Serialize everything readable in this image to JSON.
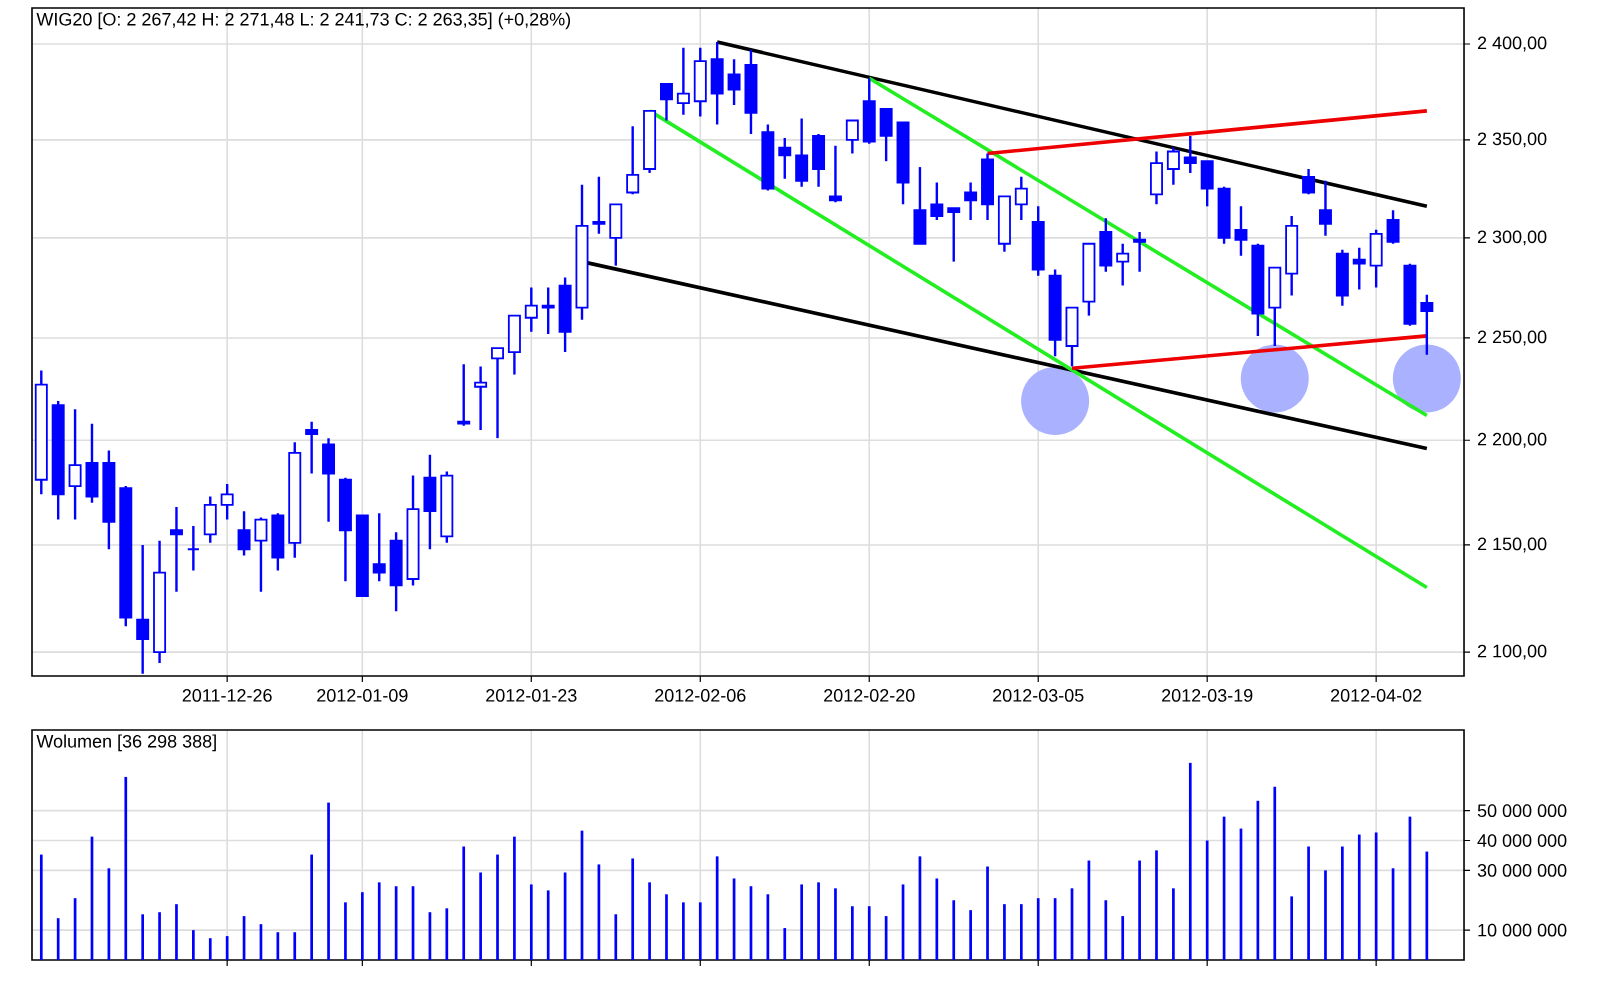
{
  "chart_data": [
    {
      "type": "candlestick",
      "title": "WIG20 [O: 2 267,42  H: 2 271,48  L: 2 241,73  C: 2 263,35] (+0,28%)",
      "color": "#0000ff",
      "log": true,
      "grid": true,
      "categories": [
        null,
        null,
        null,
        null,
        null,
        null,
        null,
        null,
        null,
        null,
        null,
        "2011-12-26",
        null,
        null,
        null,
        null,
        null,
        null,
        null,
        "2012-01-09",
        null,
        null,
        null,
        null,
        null,
        null,
        null,
        null,
        null,
        "2012-01-23",
        null,
        null,
        null,
        null,
        null,
        null,
        null,
        null,
        null,
        "2012-02-06",
        null,
        null,
        null,
        null,
        null,
        null,
        null,
        null,
        null,
        "2012-02-20",
        null,
        null,
        null,
        null,
        null,
        null,
        null,
        null,
        null,
        "2012-03-05",
        null,
        null,
        null,
        null,
        null,
        null,
        null,
        null,
        null,
        "2012-03-19",
        null,
        null,
        null,
        null,
        null,
        null,
        null,
        null,
        null,
        "2012-04-02",
        null,
        null,
        null
      ],
      "ohlc": [
        [
          2181,
          2234,
          2174,
          2227
        ],
        [
          2217,
          2219,
          2162,
          2174
        ],
        [
          2178,
          2215,
          2162,
          2188
        ],
        [
          2189,
          2208,
          2170,
          2173
        ],
        [
          2189,
          2195,
          2148,
          2161
        ],
        [
          2177,
          2178,
          2112,
          2116
        ],
        [
          2115,
          2150,
          2090,
          2106
        ],
        [
          2100,
          2152,
          2095,
          2137
        ],
        [
          2157,
          2168,
          2128,
          2155
        ],
        [
          2148,
          2159,
          2138,
          2148
        ],
        [
          2155,
          2173,
          2151,
          2169
        ],
        [
          2169,
          2179,
          2162,
          2174
        ],
        [
          2157,
          2166,
          2145,
          2148
        ],
        [
          2152,
          2163,
          2128,
          2162
        ],
        [
          2164,
          2165,
          2138,
          2144
        ],
        [
          2151,
          2199,
          2144,
          2194
        ],
        [
          2205,
          2209,
          2184,
          2203
        ],
        [
          2198,
          2201,
          2161,
          2184
        ],
        [
          2181,
          2182,
          2133,
          2157
        ],
        [
          2164,
          2164,
          2126,
          2126
        ],
        [
          2141,
          2165,
          2133,
          2137
        ],
        [
          2152,
          2156,
          2119,
          2131
        ],
        [
          2134,
          2183,
          2131,
          2167
        ],
        [
          2182,
          2193,
          2148,
          2166
        ],
        [
          2154,
          2185,
          2151,
          2183
        ],
        [
          2209,
          2237,
          2207,
          2208
        ],
        [
          2226,
          2236,
          2205,
          2228
        ],
        [
          2240,
          2245,
          2201,
          2245
        ],
        [
          2243,
          2261,
          2232,
          2261
        ],
        [
          2260,
          2275,
          2253,
          2266
        ],
        [
          2266,
          2275,
          2252,
          2265
        ],
        [
          2276,
          2280,
          2243,
          2253
        ],
        [
          2265,
          2327,
          2259,
          2306
        ],
        [
          2308,
          2331,
          2302,
          2307
        ],
        [
          2300,
          2317,
          2286,
          2317
        ],
        [
          2323,
          2357,
          2322,
          2332
        ],
        [
          2335,
          2365,
          2333,
          2365
        ],
        [
          2379,
          2379,
          2360,
          2371
        ],
        [
          2369,
          2398,
          2363,
          2374
        ],
        [
          2370,
          2398,
          2362,
          2391
        ],
        [
          2392,
          2401,
          2358,
          2374
        ],
        [
          2384,
          2392,
          2368,
          2376
        ],
        [
          2389,
          2397,
          2353,
          2364
        ],
        [
          2354,
          2358,
          2324,
          2325
        ],
        [
          2346,
          2351,
          2330,
          2342
        ],
        [
          2342,
          2361,
          2326,
          2329
        ],
        [
          2352,
          2353,
          2326,
          2335
        ],
        [
          2321,
          2347,
          2318,
          2319
        ],
        [
          2350,
          2360,
          2343,
          2360
        ],
        [
          2370,
          2382,
          2348,
          2349
        ],
        [
          2366,
          2366,
          2339,
          2352
        ],
        [
          2359,
          2359,
          2317,
          2328
        ],
        [
          2314,
          2336,
          2297,
          2297
        ],
        [
          2317,
          2328,
          2309,
          2311
        ],
        [
          2315,
          2315,
          2288,
          2313
        ],
        [
          2323,
          2328,
          2309,
          2319
        ],
        [
          2340,
          2343,
          2309,
          2317
        ],
        [
          2297,
          2321,
          2293,
          2321
        ],
        [
          2317,
          2331,
          2309,
          2325
        ],
        [
          2308,
          2316,
          2281,
          2284
        ],
        [
          2281,
          2284,
          2241,
          2249
        ],
        [
          2246,
          2265,
          2236,
          2265
        ],
        [
          2268,
          2297,
          2261,
          2297
        ],
        [
          2303,
          2310,
          2283,
          2286
        ],
        [
          2288,
          2297,
          2276,
          2292
        ],
        [
          2299,
          2303,
          2283,
          2298
        ],
        [
          2322,
          2344,
          2317,
          2338
        ],
        [
          2335,
          2346,
          2327,
          2344
        ],
        [
          2341,
          2352,
          2333,
          2338
        ],
        [
          2339,
          2339,
          2316,
          2325
        ],
        [
          2325,
          2326,
          2297,
          2300
        ],
        [
          2304,
          2316,
          2291,
          2299
        ],
        [
          2296,
          2297,
          2251,
          2262
        ],
        [
          2265,
          2285,
          2246,
          2285
        ],
        [
          2282,
          2311,
          2271,
          2306
        ],
        [
          2331,
          2335,
          2322,
          2323
        ],
        [
          2314,
          2329,
          2301,
          2307
        ],
        [
          2292,
          2294,
          2266,
          2271
        ],
        [
          2289,
          2295,
          2274,
          2287
        ],
        [
          2286,
          2304,
          2275,
          2302
        ],
        [
          2309,
          2314,
          2297,
          2298
        ],
        [
          2286,
          2287,
          2256,
          2257
        ],
        [
          2267.42,
          2271.48,
          2241.73,
          2263.35
        ]
      ],
      "series": [
        {
          "type": "scatter",
          "marker": "circle",
          "color": "#aab2ff",
          "values": [
            null,
            null,
            null,
            null,
            null,
            null,
            null,
            null,
            null,
            null,
            null,
            null,
            null,
            null,
            null,
            null,
            null,
            null,
            null,
            null,
            null,
            null,
            null,
            null,
            null,
            null,
            null,
            null,
            null,
            null,
            null,
            null,
            null,
            null,
            null,
            null,
            null,
            null,
            null,
            null,
            null,
            null,
            null,
            null,
            null,
            null,
            null,
            null,
            null,
            null,
            null,
            null,
            null,
            null,
            null,
            null,
            null,
            null,
            null,
            null,
            2219,
            null,
            null,
            null,
            null,
            null,
            null,
            null,
            null,
            null,
            null,
            null,
            null,
            2230,
            null,
            null,
            null,
            null,
            null,
            null,
            null,
            null,
            2230
          ]
        },
        {
          "type": "line",
          "color": "#000000",
          "values": [
            null,
            null,
            null,
            null,
            null,
            null,
            null,
            null,
            null,
            null,
            null,
            null,
            null,
            null,
            null,
            null,
            null,
            null,
            null,
            null,
            null,
            null,
            null,
            null,
            null,
            null,
            null,
            null,
            null,
            null,
            null,
            null,
            null,
            null,
            null,
            null,
            null,
            null,
            null,
            null,
            2401,
            null,
            null,
            null,
            null,
            null,
            null,
            null,
            null,
            null,
            null,
            null,
            null,
            null,
            null,
            null,
            null,
            null,
            null,
            null,
            null,
            null,
            null,
            null,
            null,
            null,
            null,
            null,
            null,
            null,
            null,
            null,
            null,
            null,
            null,
            null,
            null,
            null,
            null,
            null,
            null,
            null,
            2316
          ]
        },
        {
          "type": "line",
          "color": "#000000",
          "values": [
            null,
            null,
            null,
            null,
            null,
            null,
            null,
            null,
            null,
            null,
            null,
            null,
            null,
            null,
            null,
            null,
            null,
            null,
            null,
            null,
            null,
            null,
            null,
            null,
            null,
            null,
            null,
            null,
            null,
            null,
            null,
            null,
            2288,
            null,
            null,
            null,
            null,
            null,
            null,
            null,
            null,
            null,
            null,
            null,
            null,
            null,
            null,
            null,
            null,
            null,
            null,
            null,
            null,
            null,
            null,
            null,
            null,
            null,
            null,
            null,
            null,
            null,
            null,
            null,
            null,
            null,
            null,
            null,
            null,
            null,
            null,
            null,
            null,
            null,
            null,
            null,
            null,
            null,
            null,
            null,
            null,
            null,
            2196
          ]
        },
        {
          "type": "line",
          "color": "#22ee22",
          "values": [
            null,
            null,
            null,
            null,
            null,
            null,
            null,
            null,
            null,
            null,
            null,
            null,
            null,
            null,
            null,
            null,
            null,
            null,
            null,
            null,
            null,
            null,
            null,
            null,
            null,
            null,
            null,
            null,
            null,
            null,
            null,
            null,
            null,
            null,
            null,
            null,
            null,
            null,
            null,
            null,
            null,
            null,
            null,
            null,
            null,
            null,
            null,
            null,
            null,
            2382,
            null,
            null,
            null,
            null,
            null,
            null,
            null,
            null,
            null,
            null,
            null,
            null,
            null,
            null,
            null,
            null,
            null,
            null,
            null,
            null,
            null,
            null,
            null,
            null,
            null,
            null,
            null,
            null,
            null,
            null,
            null,
            null,
            2212
          ]
        },
        {
          "type": "line",
          "color": "#22ee22",
          "values": [
            null,
            null,
            null,
            null,
            null,
            null,
            null,
            null,
            null,
            null,
            null,
            null,
            null,
            null,
            null,
            null,
            null,
            null,
            null,
            null,
            null,
            null,
            null,
            null,
            null,
            null,
            null,
            null,
            null,
            null,
            null,
            null,
            null,
            null,
            null,
            null,
            2365,
            null,
            null,
            null,
            null,
            null,
            null,
            null,
            null,
            null,
            null,
            null,
            null,
            null,
            null,
            null,
            null,
            null,
            null,
            null,
            null,
            null,
            null,
            null,
            null,
            null,
            null,
            null,
            null,
            null,
            null,
            null,
            null,
            null,
            null,
            null,
            null,
            null,
            null,
            null,
            null,
            null,
            null,
            null,
            null,
            null,
            2130
          ]
        },
        {
          "type": "line",
          "color": "#ee0000",
          "values": [
            null,
            null,
            null,
            null,
            null,
            null,
            null,
            null,
            null,
            null,
            null,
            null,
            null,
            null,
            null,
            null,
            null,
            null,
            null,
            null,
            null,
            null,
            null,
            null,
            null,
            null,
            null,
            null,
            null,
            null,
            null,
            null,
            null,
            null,
            null,
            null,
            null,
            null,
            null,
            null,
            null,
            null,
            null,
            null,
            null,
            null,
            null,
            null,
            null,
            null,
            null,
            null,
            null,
            null,
            null,
            null,
            null,
            null,
            null,
            null,
            null,
            2235,
            null,
            null,
            null,
            null,
            null,
            null,
            null,
            null,
            null,
            null,
            null,
            null,
            null,
            null,
            null,
            null,
            null,
            null,
            null,
            null,
            2251
          ]
        },
        {
          "type": "line",
          "color": "#ee0000",
          "values": [
            null,
            null,
            null,
            null,
            null,
            null,
            null,
            null,
            null,
            null,
            null,
            null,
            null,
            null,
            null,
            null,
            null,
            null,
            null,
            null,
            null,
            null,
            null,
            null,
            null,
            null,
            null,
            null,
            null,
            null,
            null,
            null,
            null,
            null,
            null,
            null,
            null,
            null,
            null,
            null,
            null,
            null,
            null,
            null,
            null,
            null,
            null,
            null,
            null,
            null,
            null,
            null,
            null,
            null,
            null,
            null,
            2343,
            null,
            null,
            null,
            null,
            null,
            null,
            null,
            null,
            null,
            null,
            null,
            null,
            null,
            null,
            null,
            null,
            null,
            null,
            null,
            null,
            null,
            null,
            null,
            null,
            null,
            2365
          ]
        }
      ],
      "ylim": [
        2089,
        2419
      ],
      "yticks": [
        {
          "value": 2100,
          "label": "2 100,00"
        },
        {
          "value": 2150,
          "label": "2 150,00"
        },
        {
          "value": 2200,
          "label": "2 200,00"
        },
        {
          "value": 2250,
          "label": "2 250,00"
        },
        {
          "value": 2300,
          "label": "2 300,00"
        },
        {
          "value": 2350,
          "label": "2 350,00"
        },
        {
          "value": 2400,
          "label": "2 400,00"
        }
      ]
    },
    {
      "type": "bar",
      "title": "Wolumen [36 298 388]",
      "color": "#0000ff",
      "grid": true,
      "tick_labels": "y",
      "categories": [
        null,
        null,
        null,
        null,
        null,
        null,
        null,
        null,
        null,
        null,
        null,
        "2011-12-26",
        null,
        null,
        null,
        null,
        null,
        null,
        null,
        "2012-01-09",
        null,
        null,
        null,
        null,
        null,
        null,
        null,
        null,
        null,
        "2012-01-23",
        null,
        null,
        null,
        null,
        null,
        null,
        null,
        null,
        null,
        "2012-02-06",
        null,
        null,
        null,
        null,
        null,
        null,
        null,
        null,
        null,
        "2012-02-20",
        null,
        null,
        null,
        null,
        null,
        null,
        null,
        null,
        null,
        "2012-03-05",
        null,
        null,
        null,
        null,
        null,
        null,
        null,
        null,
        null,
        "2012-03-19",
        null,
        null,
        null,
        null,
        null,
        null,
        null,
        null,
        null,
        "2012-04-02",
        null,
        null,
        null
      ],
      "values": [
        35300000,
        14000000,
        20700000,
        41300000,
        30700000,
        61300000,
        15300000,
        16000000,
        18700000,
        10000000,
        7300000,
        8000000,
        14700000,
        12000000,
        9300000,
        9300000,
        35300000,
        52700000,
        19300000,
        22700000,
        26000000,
        24700000,
        24700000,
        16000000,
        17300000,
        38000000,
        29300000,
        35300000,
        41300000,
        25300000,
        23300000,
        29300000,
        43300000,
        32000000,
        15300000,
        34000000,
        26000000,
        22000000,
        19300000,
        19300000,
        34700000,
        27300000,
        24700000,
        22000000,
        10700000,
        25300000,
        26000000,
        24000000,
        18000000,
        18000000,
        14700000,
        25300000,
        34700000,
        27300000,
        20000000,
        16700000,
        31300000,
        18700000,
        18700000,
        20700000,
        20700000,
        24000000,
        33300000,
        20000000,
        14700000,
        33300000,
        36700000,
        24000000,
        66000000,
        40000000,
        48000000,
        44000000,
        53300000,
        58000000,
        21300000,
        38000000,
        30000000,
        38000000,
        42000000,
        42700000,
        30700000,
        48000000,
        36300000
      ],
      "ylim": [
        0,
        77000000
      ],
      "yticks": [
        {
          "value": 10000000,
          "label": "10 000 000"
        },
        {
          "value": 30000000,
          "label": "30 000 000"
        },
        {
          "value": 40000000,
          "label": "40 000 000"
        },
        {
          "value": 50000000,
          "label": "50 000 000"
        }
      ]
    }
  ]
}
